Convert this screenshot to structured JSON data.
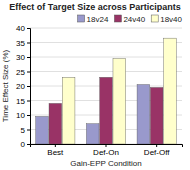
{
  "chart_data": {
    "type": "bar",
    "title": "Effect of Target Size across Participants",
    "xlabel": "Gain-EPP Condition",
    "ylabel": "Time Effect Size (%)",
    "categories": [
      "Best",
      "Def-On",
      "Def-Off"
    ],
    "series": [
      {
        "name": "18v24",
        "color": "#9999cc",
        "values": [
          9.5,
          7.0,
          20.5
        ]
      },
      {
        "name": "24v40",
        "color": "#993366",
        "values": [
          14.0,
          23.0,
          19.5
        ]
      },
      {
        "name": "18v40",
        "color": "#ffffcc",
        "values": [
          23.0,
          29.5,
          36.5
        ]
      }
    ],
    "ylim": [
      0,
      40
    ],
    "yticks": [
      0,
      5,
      10,
      15,
      20,
      25,
      30,
      35,
      40
    ],
    "grid": true,
    "legend": "upper right"
  }
}
